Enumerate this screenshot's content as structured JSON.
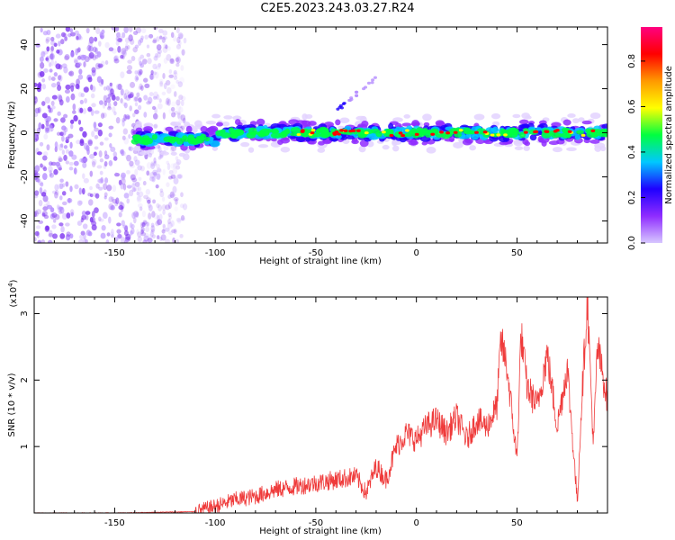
{
  "title": "C2E5.2023.243.03.27.R24",
  "colors": {
    "snr_line": "#ef3b3b",
    "scatter": "#7a2ff0",
    "colorbar_stops": [
      "#d7c7ff",
      "#8f2cff",
      "#1e00ff",
      "#00c8ff",
      "#00ff40",
      "#ffff00",
      "#ff9900",
      "#ff0000",
      "#ff0080"
    ]
  },
  "chart_data": [
    {
      "type": "heatmap",
      "title": "",
      "xlabel": "Height of straight line (km)",
      "ylabel": "Frequency (Hz)",
      "xlim": [
        -190,
        95
      ],
      "ylim": [
        -50,
        48
      ],
      "xticks": [
        "-150",
        "-100",
        "-50",
        "0",
        "50"
      ],
      "xtick_values": [
        -150,
        -100,
        -50,
        0,
        50
      ],
      "yticks": [
        "-40",
        "-20",
        "0",
        "20",
        "40"
      ],
      "ytick_values": [
        -40,
        -20,
        0,
        20,
        40
      ],
      "colorbar": {
        "label": "Normalized spectral amplitude",
        "range": [
          0,
          0.95
        ],
        "ticks": [
          "0.0",
          "0.2",
          "0.4",
          "0.6",
          "0.8"
        ],
        "tick_values": [
          0.0,
          0.2,
          0.4,
          0.6,
          0.8
        ]
      },
      "features": {
        "noise_region_x": [
          -190,
          -115
        ],
        "main_ridge_x": [
          -140,
          95
        ],
        "main_ridge_freq": 0,
        "secondary_trace": {
          "x": [
            -40,
            -20
          ],
          "y": [
            10,
            25
          ]
        }
      }
    },
    {
      "type": "line",
      "title": "",
      "xlabel": "Height of straight line (km)",
      "ylabel": "SNR (10 * v/v)",
      "y_multiplier": "(x10",
      "y_multiplier_exp": "4",
      "y_multiplier_close": ")",
      "xlim": [
        -190,
        95
      ],
      "ylim": [
        0,
        3.25
      ],
      "xticks": [
        "-150",
        "-100",
        "-50",
        "0",
        "50"
      ],
      "xtick_values": [
        -150,
        -100,
        -50,
        0,
        50
      ],
      "yticks": [
        "1",
        "2",
        "3"
      ],
      "ytick_values": [
        1,
        2,
        3
      ],
      "series": [
        {
          "x": [
            -190,
            -150,
            -110,
            -100,
            -90,
            -80,
            -70,
            -60,
            -50,
            -40,
            -30,
            -25,
            -20,
            -15,
            -10,
            -5,
            0,
            5,
            10,
            15,
            20,
            25,
            30,
            35,
            40,
            42,
            45,
            50,
            52,
            55,
            60,
            65,
            70,
            75,
            80,
            82,
            85,
            88,
            90,
            95
          ],
          "y": [
            0.0,
            0.0,
            0.02,
            0.1,
            0.2,
            0.25,
            0.35,
            0.4,
            0.45,
            0.5,
            0.55,
            0.3,
            0.7,
            0.5,
            1.0,
            1.2,
            1.1,
            1.3,
            1.4,
            1.2,
            1.45,
            1.1,
            1.4,
            1.3,
            1.6,
            2.6,
            2.2,
            0.8,
            2.7,
            1.9,
            1.6,
            2.4,
            1.3,
            2.2,
            0.15,
            1.6,
            3.2,
            1.0,
            2.5,
            1.7
          ]
        }
      ]
    }
  ]
}
